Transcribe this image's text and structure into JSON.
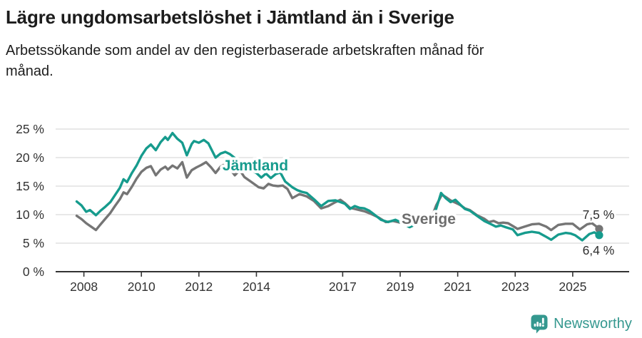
{
  "header": {
    "title": "Lägre ungdomsarbetslöshet i Jämtland än i Sverige",
    "subtitle": "Arbetssökande som andel av den registerbaserade arbetskraften månad för månad."
  },
  "chart_data": {
    "type": "line",
    "title": "Lägre ungdomsarbetslöshet i Jämtland än i Sverige",
    "subtitle": "Arbetssökande som andel av den registerbaserade arbetskraften månad för månad.",
    "xlabel": "",
    "ylabel": "",
    "grid": true,
    "legend_position": "inline-labels",
    "xlim": [
      2007.6,
      2026.3
    ],
    "ylim": [
      0,
      26.5
    ],
    "x_ticks": [
      {
        "value": 2008,
        "label": "2008"
      },
      {
        "value": 2010,
        "label": "2010"
      },
      {
        "value": 2012,
        "label": "2012"
      },
      {
        "value": 2014,
        "label": "2014"
      },
      {
        "value": 2017,
        "label": "2017"
      },
      {
        "value": 2019,
        "label": "2019"
      },
      {
        "value": 2021,
        "label": "2021"
      },
      {
        "value": 2023,
        "label": "2023"
      },
      {
        "value": 2025,
        "label": "2025"
      }
    ],
    "y_ticks": [
      {
        "value": 0,
        "label": "0 %"
      },
      {
        "value": 5,
        "label": "5 %"
      },
      {
        "value": 10,
        "label": "10 %"
      },
      {
        "value": 15,
        "label": "15 %"
      },
      {
        "value": 20,
        "label": "20 %"
      },
      {
        "value": 25,
        "label": "25 %"
      }
    ],
    "series": [
      {
        "name": "Sverige",
        "color": "#757575",
        "label_color": "#6d6d6d",
        "end_label": "7,5 %",
        "end_label_offset": -14,
        "label_anchor": {
          "year": 2019.05,
          "value": 8.4
        },
        "points": [
          [
            2007.75,
            9.8
          ],
          [
            2007.92,
            9.2
          ],
          [
            2008.08,
            8.5
          ],
          [
            2008.25,
            7.9
          ],
          [
            2008.42,
            7.3
          ],
          [
            2008.58,
            8.3
          ],
          [
            2008.75,
            9.3
          ],
          [
            2008.92,
            10.3
          ],
          [
            2009.08,
            11.5
          ],
          [
            2009.25,
            12.7
          ],
          [
            2009.38,
            13.9
          ],
          [
            2009.5,
            13.6
          ],
          [
            2009.67,
            14.9
          ],
          [
            2009.83,
            16.3
          ],
          [
            2010.0,
            17.5
          ],
          [
            2010.17,
            18.2
          ],
          [
            2010.33,
            18.5
          ],
          [
            2010.5,
            16.9
          ],
          [
            2010.67,
            17.9
          ],
          [
            2010.83,
            18.4
          ],
          [
            2010.92,
            17.9
          ],
          [
            2011.08,
            18.6
          ],
          [
            2011.25,
            18.1
          ],
          [
            2011.42,
            19.2
          ],
          [
            2011.58,
            16.5
          ],
          [
            2011.75,
            17.8
          ],
          [
            2011.92,
            18.3
          ],
          [
            2012.08,
            18.7
          ],
          [
            2012.25,
            19.2
          ],
          [
            2012.42,
            18.3
          ],
          [
            2012.58,
            17.3
          ],
          [
            2012.75,
            18.4
          ],
          [
            2012.92,
            18.9
          ],
          [
            2013.08,
            18.0
          ],
          [
            2013.25,
            16.9
          ],
          [
            2013.42,
            17.8
          ],
          [
            2013.58,
            16.6
          ],
          [
            2013.83,
            15.7
          ],
          [
            2014.08,
            14.8
          ],
          [
            2014.25,
            14.6
          ],
          [
            2014.42,
            15.4
          ],
          [
            2014.58,
            15.1
          ],
          [
            2014.75,
            15.0
          ],
          [
            2014.92,
            15.1
          ],
          [
            2015.08,
            14.5
          ],
          [
            2015.25,
            12.9
          ],
          [
            2015.5,
            13.6
          ],
          [
            2015.75,
            13.2
          ],
          [
            2016.0,
            12.4
          ],
          [
            2016.25,
            11.1
          ],
          [
            2016.5,
            11.5
          ],
          [
            2016.75,
            12.2
          ],
          [
            2016.92,
            12.6
          ],
          [
            2017.08,
            12.0
          ],
          [
            2017.25,
            11.2
          ],
          [
            2017.42,
            11.0
          ],
          [
            2017.58,
            10.8
          ],
          [
            2017.75,
            10.6
          ],
          [
            2018.0,
            10.1
          ],
          [
            2018.25,
            9.5
          ],
          [
            2018.5,
            8.7
          ],
          [
            2018.75,
            8.9
          ],
          [
            2019.0,
            8.6
          ],
          [
            2019.25,
            8.4
          ],
          [
            2019.5,
            8.3
          ],
          [
            2019.75,
            8.5
          ],
          [
            2020.08,
            9.3
          ],
          [
            2020.25,
            11.6
          ],
          [
            2020.45,
            13.5
          ],
          [
            2020.58,
            13.1
          ],
          [
            2020.75,
            12.5
          ],
          [
            2020.92,
            12.1
          ],
          [
            2021.08,
            11.7
          ],
          [
            2021.25,
            11.1
          ],
          [
            2021.42,
            10.8
          ],
          [
            2021.67,
            9.9
          ],
          [
            2021.92,
            9.3
          ],
          [
            2022.08,
            8.7
          ],
          [
            2022.25,
            8.9
          ],
          [
            2022.42,
            8.5
          ],
          [
            2022.58,
            8.6
          ],
          [
            2022.75,
            8.5
          ],
          [
            2022.92,
            8.0
          ],
          [
            2023.08,
            7.5
          ],
          [
            2023.33,
            7.9
          ],
          [
            2023.58,
            8.3
          ],
          [
            2023.83,
            8.4
          ],
          [
            2024.08,
            7.9
          ],
          [
            2024.25,
            7.3
          ],
          [
            2024.5,
            8.2
          ],
          [
            2024.75,
            8.4
          ],
          [
            2025.0,
            8.4
          ],
          [
            2025.25,
            7.4
          ],
          [
            2025.5,
            8.3
          ],
          [
            2025.67,
            8.5
          ],
          [
            2025.83,
            7.9
          ],
          [
            2025.92,
            7.5
          ]
        ]
      },
      {
        "name": "Jämtland",
        "color": "#169b8d",
        "label_color": "#169b8d",
        "end_label": "6,4 %",
        "end_label_offset": 27,
        "label_anchor": {
          "year": 2012.82,
          "value": 17.75
        },
        "points": [
          [
            2007.75,
            12.3
          ],
          [
            2007.92,
            11.6
          ],
          [
            2008.08,
            10.5
          ],
          [
            2008.21,
            10.8
          ],
          [
            2008.42,
            9.9
          ],
          [
            2008.58,
            10.7
          ],
          [
            2008.75,
            11.4
          ],
          [
            2008.92,
            12.2
          ],
          [
            2009.08,
            13.4
          ],
          [
            2009.25,
            14.7
          ],
          [
            2009.38,
            16.2
          ],
          [
            2009.5,
            15.7
          ],
          [
            2009.67,
            17.3
          ],
          [
            2009.83,
            18.6
          ],
          [
            2010.0,
            20.3
          ],
          [
            2010.17,
            21.6
          ],
          [
            2010.33,
            22.3
          ],
          [
            2010.5,
            21.3
          ],
          [
            2010.67,
            22.7
          ],
          [
            2010.83,
            23.6
          ],
          [
            2010.92,
            23.1
          ],
          [
            2011.08,
            24.3
          ],
          [
            2011.25,
            23.3
          ],
          [
            2011.42,
            22.6
          ],
          [
            2011.58,
            20.4
          ],
          [
            2011.75,
            22.4
          ],
          [
            2011.83,
            22.9
          ],
          [
            2012.0,
            22.6
          ],
          [
            2012.17,
            23.1
          ],
          [
            2012.33,
            22.5
          ],
          [
            2012.58,
            20.0
          ],
          [
            2012.75,
            20.7
          ],
          [
            2012.92,
            21.0
          ],
          [
            2013.08,
            20.6
          ],
          [
            2013.33,
            19.6
          ],
          [
            2013.58,
            18.6
          ],
          [
            2013.83,
            17.7
          ],
          [
            2014.0,
            17.3
          ],
          [
            2014.17,
            16.5
          ],
          [
            2014.33,
            17.2
          ],
          [
            2014.5,
            16.4
          ],
          [
            2014.67,
            17.1
          ],
          [
            2014.83,
            17.4
          ],
          [
            2015.0,
            15.8
          ],
          [
            2015.25,
            14.8
          ],
          [
            2015.42,
            14.3
          ],
          [
            2015.58,
            14.0
          ],
          [
            2015.75,
            13.8
          ],
          [
            2016.0,
            12.7
          ],
          [
            2016.25,
            11.5
          ],
          [
            2016.5,
            12.4
          ],
          [
            2016.75,
            12.5
          ],
          [
            2016.92,
            12.2
          ],
          [
            2017.08,
            11.9
          ],
          [
            2017.25,
            11.0
          ],
          [
            2017.42,
            11.5
          ],
          [
            2017.58,
            11.2
          ],
          [
            2017.75,
            11.1
          ],
          [
            2017.92,
            10.7
          ],
          [
            2018.08,
            10.1
          ],
          [
            2018.33,
            9.1
          ],
          [
            2018.58,
            8.7
          ],
          [
            2018.83,
            9.1
          ],
          [
            2019.08,
            8.5
          ],
          [
            2019.33,
            7.8
          ],
          [
            2019.58,
            8.4
          ],
          [
            2019.83,
            8.4
          ],
          [
            2020.08,
            8.7
          ],
          [
            2020.25,
            11.0
          ],
          [
            2020.42,
            13.8
          ],
          [
            2020.58,
            12.9
          ],
          [
            2020.75,
            12.2
          ],
          [
            2020.92,
            12.6
          ],
          [
            2021.08,
            11.8
          ],
          [
            2021.25,
            11.0
          ],
          [
            2021.42,
            10.7
          ],
          [
            2021.67,
            9.8
          ],
          [
            2021.92,
            8.9
          ],
          [
            2022.17,
            8.3
          ],
          [
            2022.33,
            7.9
          ],
          [
            2022.5,
            8.1
          ],
          [
            2022.67,
            7.8
          ],
          [
            2022.92,
            7.4
          ],
          [
            2023.08,
            6.4
          ],
          [
            2023.33,
            6.8
          ],
          [
            2023.58,
            7.0
          ],
          [
            2023.83,
            6.8
          ],
          [
            2024.08,
            6.1
          ],
          [
            2024.25,
            5.6
          ],
          [
            2024.5,
            6.5
          ],
          [
            2024.75,
            6.8
          ],
          [
            2024.92,
            6.7
          ],
          [
            2025.08,
            6.4
          ],
          [
            2025.33,
            5.5
          ],
          [
            2025.58,
            6.6
          ],
          [
            2025.75,
            6.9
          ],
          [
            2025.92,
            6.4
          ]
        ]
      }
    ],
    "colors": {
      "jamtland": "#169b8d",
      "sverige": "#757575",
      "gridline": "#dadada",
      "axis": "#333333",
      "tick_label": "#333333",
      "end_label": "#2e2e2e"
    }
  },
  "footer": {
    "brand": "Newsworthy",
    "brand_color": "#35988f"
  }
}
